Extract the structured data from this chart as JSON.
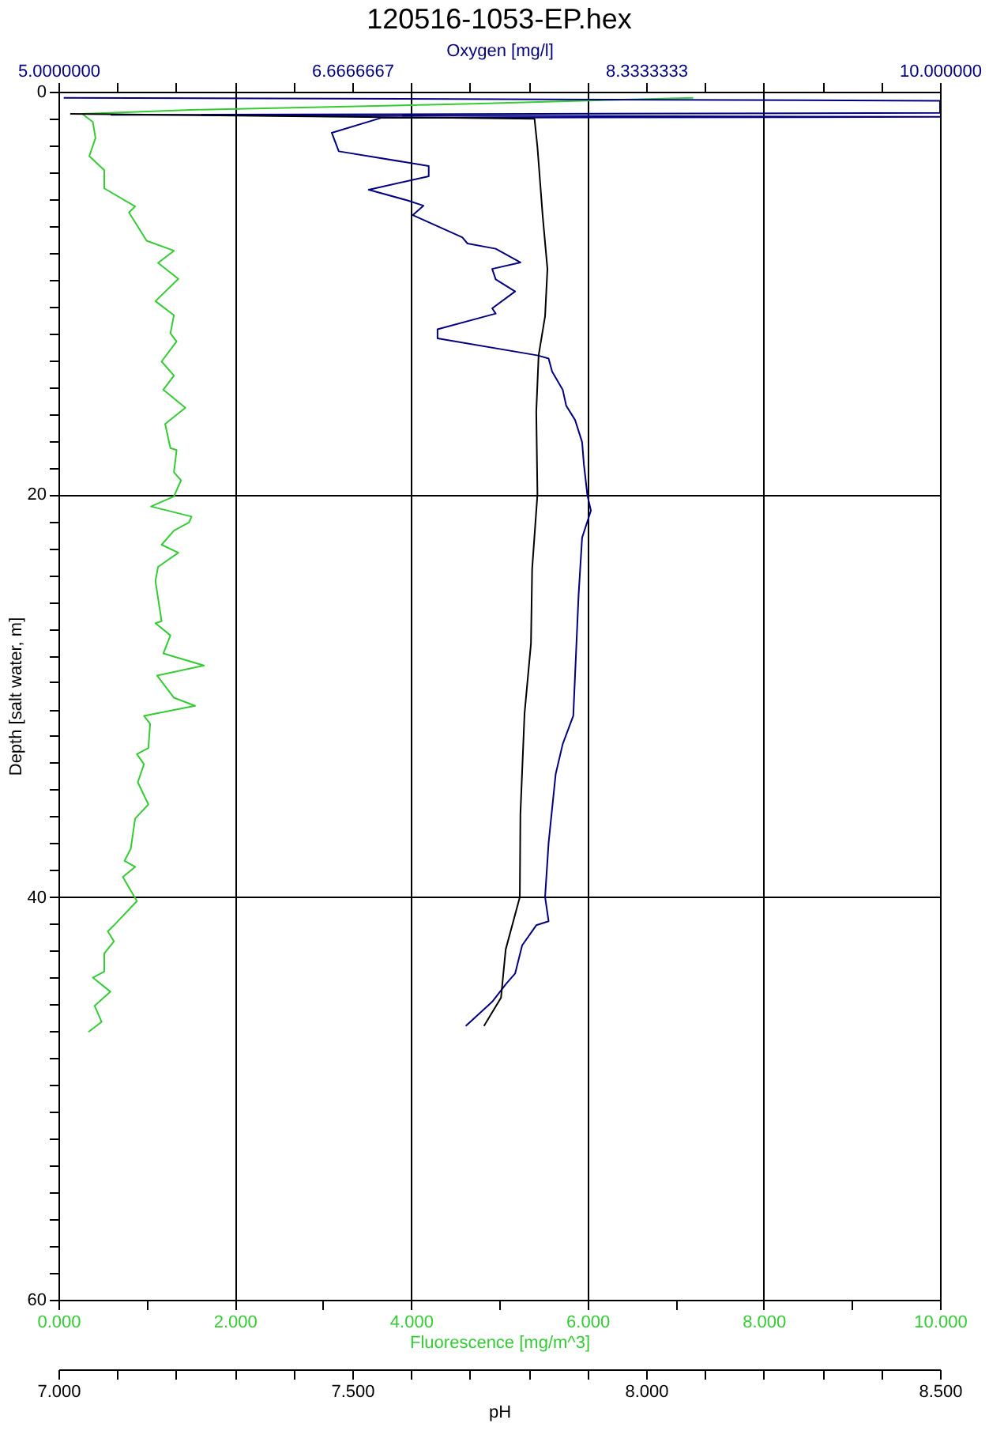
{
  "chart_data": [
    {
      "type": "line",
      "title": "120516-1053-EP.hex",
      "xlabel": "Fluorescence [mg/m^3]",
      "x2label": "Oxygen [mg/l]",
      "ylabel": "Depth [salt water, m]",
      "xlim": [
        0,
        10
      ],
      "xticks": [
        {
          "value": 0,
          "label": "0.000"
        },
        {
          "value": 1,
          "label": null
        },
        {
          "value": 2,
          "label": "2.000"
        },
        {
          "value": 3,
          "label": null
        },
        {
          "value": 4,
          "label": "4.000"
        },
        {
          "value": 5,
          "label": null
        },
        {
          "value": 6,
          "label": "6.000"
        },
        {
          "value": 7,
          "label": null
        },
        {
          "value": 8,
          "label": "8.000"
        },
        {
          "value": 9,
          "label": null
        },
        {
          "value": 10,
          "label": "10.000"
        }
      ],
      "x2lim": [
        5,
        10
      ],
      "x2ticks": [
        {
          "value": 5,
          "label": "5.0000000"
        },
        {
          "value": 5.333,
          "label": null
        },
        {
          "value": 5.667,
          "label": null
        },
        {
          "value": 6,
          "label": null
        },
        {
          "value": 6.333,
          "label": null
        },
        {
          "value": 6.6666667,
          "label": "6.6666667"
        },
        {
          "value": 7,
          "label": null
        },
        {
          "value": 7.333,
          "label": null
        },
        {
          "value": 7.667,
          "label": null
        },
        {
          "value": 8,
          "label": null
        },
        {
          "value": 8.3333333,
          "label": "8.3333333"
        },
        {
          "value": 8.667,
          "label": null
        },
        {
          "value": 9,
          "label": null
        },
        {
          "value": 9.333,
          "label": null
        },
        {
          "value": 9.667,
          "label": null
        },
        {
          "value": 10,
          "label": "10.000000"
        }
      ],
      "ylim": [
        60,
        0
      ],
      "yticks": [
        0,
        {
          "value": 1.33,
          "label": null
        },
        {
          "value": 2.67,
          "label": null
        },
        {
          "value": 4,
          "label": null
        },
        {
          "value": 5.33,
          "label": null
        },
        {
          "value": 6.67,
          "label": null
        },
        {
          "value": 8,
          "label": null
        },
        {
          "value": 9.33,
          "label": null
        },
        {
          "value": 10.67,
          "label": null
        },
        {
          "value": 12,
          "label": null
        },
        {
          "value": 13.33,
          "label": null
        },
        {
          "value": 14.67,
          "label": null
        },
        {
          "value": 16,
          "label": null
        },
        {
          "value": 17.33,
          "label": null
        },
        {
          "value": 18.67,
          "label": null
        },
        20,
        {
          "value": 21.33,
          "label": null
        },
        {
          "value": 22.67,
          "label": null
        },
        {
          "value": 24,
          "label": null
        },
        {
          "value": 25.33,
          "label": null
        },
        {
          "value": 26.67,
          "label": null
        },
        {
          "value": 28,
          "label": null
        },
        {
          "value": 29.33,
          "label": null
        },
        {
          "value": 30.67,
          "label": null
        },
        {
          "value": 32,
          "label": null
        },
        {
          "value": 33.33,
          "label": null
        },
        {
          "value": 34.67,
          "label": null
        },
        {
          "value": 36,
          "label": null
        },
        {
          "value": 37.33,
          "label": null
        },
        {
          "value": 38.67,
          "label": null
        },
        40,
        {
          "value": 41.33,
          "label": null
        },
        {
          "value": 42.67,
          "label": null
        },
        {
          "value": 44,
          "label": null
        },
        {
          "value": 45.33,
          "label": null
        },
        {
          "value": 46.67,
          "label": null
        },
        {
          "value": 48,
          "label": null
        },
        {
          "value": 49.33,
          "label": null
        },
        {
          "value": 50.67,
          "label": null
        },
        {
          "value": 52,
          "label": null
        },
        {
          "value": 53.33,
          "label": null
        },
        {
          "value": 54.67,
          "label": null
        },
        {
          "value": 56,
          "label": null
        },
        {
          "value": 57.33,
          "label": null
        },
        {
          "value": 58.67,
          "label": null
        },
        60
      ],
      "grid": true,
      "series": [
        {
          "color": "#33cc33",
          "x": [
            7.2,
            4.7,
            1.5,
            0.27,
            0.39,
            0.42,
            0.35,
            0.52,
            0.52,
            0.87,
            0.8,
            1.0,
            1.31,
            1.13,
            1.36,
            1.1,
            1.31,
            1.27,
            1.34,
            1.17,
            1.31,
            1.19,
            1.44,
            1.21,
            1.27,
            1.34,
            1.31,
            1.39,
            1.31,
            1.05,
            1.51,
            1.48,
            1.31,
            1.17,
            1.36,
            1.13,
            1.1,
            1.17,
            1.1,
            1.27,
            1.19,
            1.65,
            1.12,
            1.31,
            1.55,
            0.97,
            1.04,
            1.02,
            0.89,
            0.97,
            0.9,
            1.02,
            0.87,
            0.82,
            0.75,
            0.87,
            0.73,
            0.89,
            0.63,
            0.56,
            0.63,
            0.52,
            0.52,
            0.39,
            0.59,
            0.41,
            0.49,
            0.34
          ],
          "values": [
            0.3,
            0.6,
            0.9,
            1.1,
            1.5,
            2.3,
            3.2,
            3.9,
            4.8,
            5.7,
            6.0,
            7.4,
            7.9,
            8.5,
            9.3,
            10.4,
            11.1,
            12.0,
            12.4,
            13.4,
            14.1,
            14.8,
            15.7,
            16.5,
            17.7,
            17.8,
            18.9,
            19.3,
            20.1,
            20.6,
            21.1,
            21.4,
            21.8,
            22.5,
            22.9,
            23.6,
            24.3,
            26.3,
            26.4,
            27.0,
            27.9,
            28.5,
            29.0,
            30.1,
            30.5,
            31.0,
            31.4,
            32.6,
            32.9,
            33.4,
            34.3,
            35.4,
            36.1,
            37.6,
            38.2,
            38.5,
            39.0,
            40.2,
            41.4,
            41.7,
            42.2,
            42.8,
            43.7,
            44.0,
            44.7,
            45.4,
            46.2,
            46.7
          ]
        },
        {
          "color": "#000080",
          "axis": "x2",
          "x": [
            5.03,
            10,
            10,
            5.3,
            10,
            6.83,
            6.55,
            6.59,
            7.1,
            7.1,
            6.76,
            6.98,
            7.07,
            7.01,
            7.29,
            7.32,
            7.48,
            7.62,
            7.46,
            7.48,
            7.59,
            7.46,
            7.48,
            7.15,
            7.15,
            7.72,
            7.78,
            7.8,
            7.86,
            7.88,
            7.93,
            7.97,
            7.98,
            8.0,
            8.02,
            7.97,
            7.95,
            7.92,
            7.86,
            7.82,
            7.78,
            7.76,
            7.78,
            7.71,
            7.63,
            7.59,
            7.54,
            7.46,
            7.31
          ],
          "values": [
            0.3,
            0.45,
            1.05,
            1.15,
            1.25,
            1.3,
            2.04,
            2.96,
            3.69,
            4.2,
            4.87,
            5.4,
            5.66,
            6.13,
            7.23,
            7.54,
            7.8,
            8.48,
            8.8,
            9.32,
            9.92,
            10.76,
            11.02,
            11.8,
            12.25,
            13.1,
            13.25,
            13.9,
            14.8,
            15.6,
            16.3,
            17.4,
            18.5,
            20.05,
            20.8,
            22.15,
            25.0,
            31.0,
            32.4,
            33.9,
            37.3,
            40.0,
            41.2,
            41.4,
            42.4,
            43.8,
            44.3,
            45.2,
            46.4
          ]
        }
      ]
    },
    {
      "type": "line",
      "xlabel": "pH",
      "xlim": [
        7,
        8.5
      ],
      "xticks": [
        {
          "value": 7,
          "label": "7.000"
        },
        {
          "value": 7.1,
          "label": null
        },
        {
          "value": 7.2,
          "label": null
        },
        {
          "value": 7.3,
          "label": null
        },
        {
          "value": 7.4,
          "label": null
        },
        {
          "value": 7.5,
          "label": "7.500"
        },
        {
          "value": 7.6,
          "label": null
        },
        {
          "value": 7.7,
          "label": null
        },
        {
          "value": 7.8,
          "label": null
        },
        {
          "value": 7.9,
          "label": null
        },
        {
          "value": 8,
          "label": "8.000"
        },
        {
          "value": 8.1,
          "label": null
        },
        {
          "value": 8.2,
          "label": null
        },
        {
          "value": 8.3,
          "label": null
        },
        {
          "value": 8.4,
          "label": null
        },
        {
          "value": 8.5,
          "label": "8.500"
        }
      ],
      "ylim": [
        60,
        0
      ],
      "tick_labels": "x",
      "series": [
        {
          "color": "#000000",
          "x": [
            7.02,
            7.81,
            7.815,
            7.824,
            7.832,
            7.828,
            7.817,
            7.813,
            7.815,
            7.806,
            7.804,
            7.793,
            7.786,
            7.785,
            7.761,
            7.753,
            7.724
          ],
          "values": [
            1.1,
            1.34,
            2.75,
            6.2,
            8.8,
            11.15,
            13.1,
            15.9,
            20.0,
            23.7,
            27.4,
            30.9,
            35.9,
            40.0,
            42.6,
            45.0,
            46.4
          ]
        }
      ]
    }
  ]
}
